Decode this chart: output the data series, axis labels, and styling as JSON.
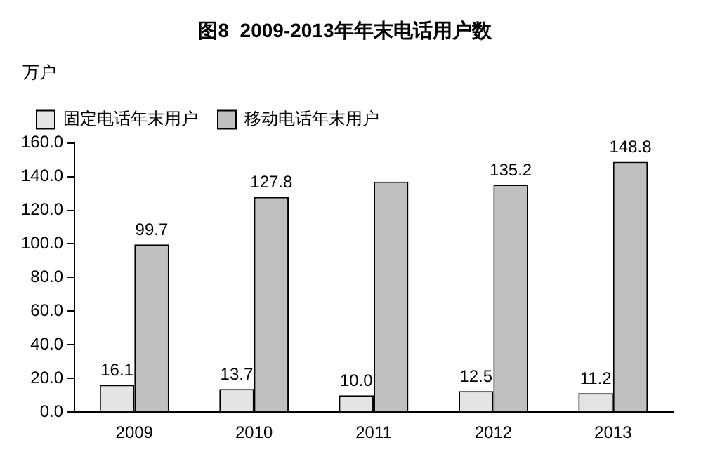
{
  "chart_data": {
    "type": "bar",
    "title": "图8  2009-2013年年末电话用户数",
    "ylabel": "万户",
    "categories": [
      "2009",
      "2010",
      "2011",
      "2012",
      "2013"
    ],
    "series": [
      {
        "name": "固定电话年末用户",
        "color": "#e4e4e4",
        "values": [
          16.1,
          13.7,
          10.0,
          12.5,
          11.2
        ],
        "value_labels": [
          "16.1",
          "13.7",
          "10.0",
          "12.5",
          "11.2"
        ]
      },
      {
        "name": "移动电话年末用户",
        "color": "#c0c0c0",
        "values": [
          99.7,
          127.8,
          137,
          135.2,
          148.8
        ],
        "value_labels": [
          "99.7",
          "127.8",
          null,
          "135.2",
          "148.8"
        ]
      }
    ],
    "ylim": [
      0,
      160
    ],
    "yticks": [
      {
        "value": 0,
        "label": "0.0"
      },
      {
        "value": 20,
        "label": "20.0"
      },
      {
        "value": 40,
        "label": "40.0"
      },
      {
        "value": 60,
        "label": "60.0"
      },
      {
        "value": 80,
        "label": "80.0"
      },
      {
        "value": 100,
        "label": "100.0"
      },
      {
        "value": 120,
        "label": "120.0"
      },
      {
        "value": 140,
        "label": "140.0"
      },
      {
        "value": 160,
        "label": "160.0"
      }
    ],
    "grid": false,
    "legend": "top left"
  }
}
